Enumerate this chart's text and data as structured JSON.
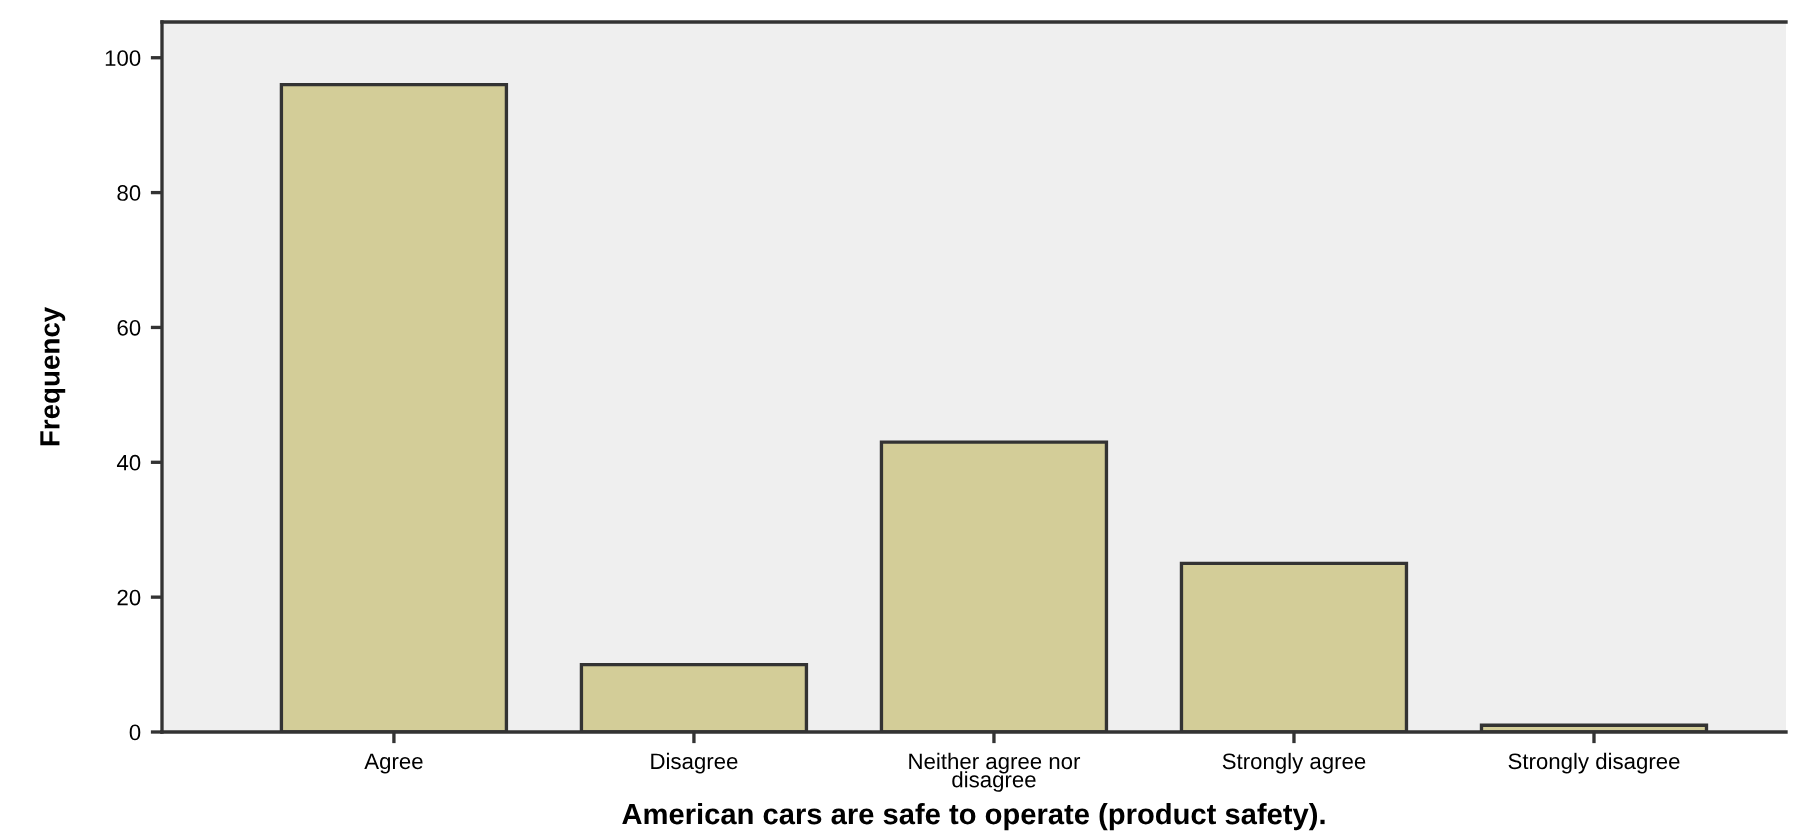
{
  "chart_data": {
    "type": "bar",
    "xlabel": "American cars are safe to operate (product safety).",
    "ylabel": "Frequency",
    "categories": [
      "Agree",
      "Disagree",
      "Neither agree nor\ndisagree",
      "Strongly agree",
      "Strongly disagree"
    ],
    "values": [
      96,
      10,
      43,
      25,
      1
    ],
    "color": "#d3cd98",
    "ylim": [
      0,
      105.3
    ],
    "yticks": [
      0,
      20,
      40,
      60,
      80,
      100
    ],
    "grid": false,
    "legend": false
  }
}
